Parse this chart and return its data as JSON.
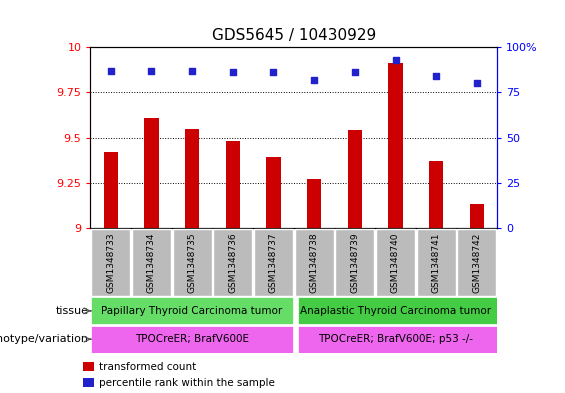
{
  "title": "GDS5645 / 10430929",
  "samples": [
    "GSM1348733",
    "GSM1348734",
    "GSM1348735",
    "GSM1348736",
    "GSM1348737",
    "GSM1348738",
    "GSM1348739",
    "GSM1348740",
    "GSM1348741",
    "GSM1348742"
  ],
  "transformed_counts": [
    9.42,
    9.61,
    9.55,
    9.48,
    9.39,
    9.27,
    9.54,
    9.91,
    9.37,
    9.13
  ],
  "percentile_ranks": [
    87,
    87,
    87,
    86,
    86,
    82,
    86,
    93,
    84,
    80
  ],
  "ylim": [
    9.0,
    10.0
  ],
  "yticks": [
    9.0,
    9.25,
    9.5,
    9.75,
    10.0
  ],
  "ytick_labels": [
    "9",
    "9.25",
    "9.5",
    "9.75",
    "10"
  ],
  "right_yticks": [
    0,
    25,
    50,
    75,
    100
  ],
  "right_ytick_labels": [
    "0",
    "25",
    "50",
    "75",
    "100%"
  ],
  "bar_color": "#cc0000",
  "dot_color": "#2222cc",
  "grid_color": "black",
  "tissue_labels": [
    "Papillary Thyroid Carcinoma tumor",
    "Anaplastic Thyroid Carcinoma tumor"
  ],
  "tissue_colors": [
    "#66dd66",
    "#44cc44"
  ],
  "tissue_split": 5,
  "geno_labels": [
    "TPOCreER; BrafV600E",
    "TPOCreER; BrafV600E; p53 -/-"
  ],
  "geno_color": "#ee66ee",
  "row_label_tissue": "tissue",
  "row_label_geno": "genotype/variation",
  "legend_red": "transformed count",
  "legend_blue": "percentile rank within the sample",
  "bar_width": 0.35,
  "sample_bg_color": "#bbbbbb",
  "title_fontsize": 11,
  "tick_fontsize": 8,
  "annot_fontsize": 7.5,
  "sample_fontsize": 6.5
}
